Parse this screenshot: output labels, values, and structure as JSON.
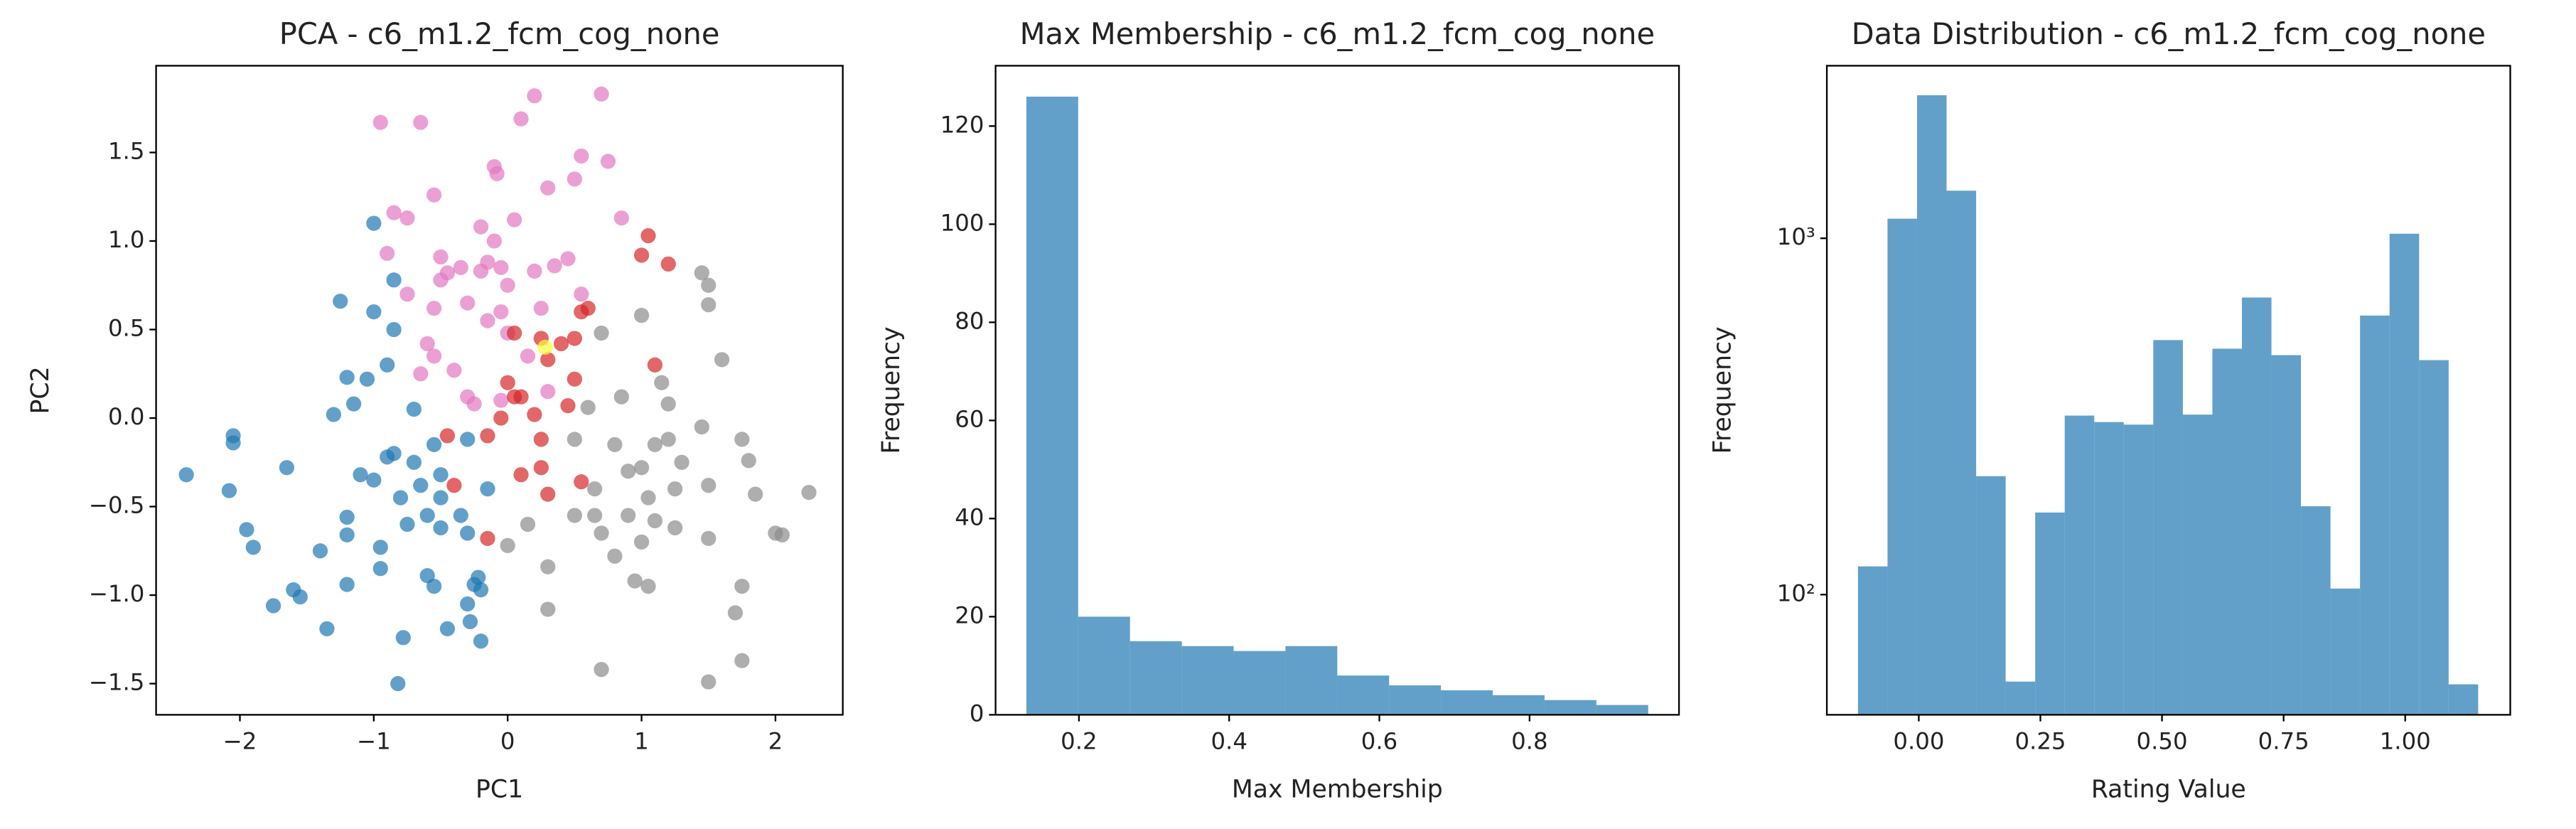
{
  "chart_data": [
    {
      "type": "scatter",
      "title": "PCA - c6_m1.2_fcm_cog_none",
      "xlabel": "PC1",
      "ylabel": "PC2",
      "xlim": [
        -2.626,
        2.503
      ],
      "ylim": [
        -1.676,
        1.99
      ],
      "xticks": [
        {
          "value": -2,
          "label": "−2"
        },
        {
          "value": -1,
          "label": "−1"
        },
        0,
        1,
        2
      ],
      "yticks": [
        {
          "value": -1.5,
          "label": "−1.5"
        },
        {
          "value": -1.0,
          "label": "−1.0"
        },
        {
          "value": -0.5,
          "label": "−0.5"
        },
        {
          "value": 0.0,
          "label": "0.0"
        },
        {
          "value": 0.5,
          "label": "0.5"
        },
        {
          "value": 1.0,
          "label": "1.0"
        },
        {
          "value": 1.5,
          "label": "1.5"
        }
      ],
      "series": [
        {
          "color": "#1f77b4",
          "x": [
            -2.4,
            -2.05,
            -2.05,
            -2.08,
            -1.95,
            -1.9,
            -1.75,
            -1.6,
            -1.55,
            -1.65,
            -1.4,
            -1.35,
            -1.3,
            -1.25,
            -1.2,
            -1.2,
            -1.2,
            -1.2,
            -1.15,
            -1.1,
            -1.05,
            -1.0,
            -1.0,
            -1.0,
            -0.95,
            -0.9,
            -0.95,
            -0.9,
            -0.85,
            -0.85,
            -0.85,
            -0.8,
            -0.82,
            -0.78,
            -0.75,
            -0.7,
            -0.7,
            -0.65,
            -0.6,
            -0.6,
            -0.55,
            -0.5,
            -0.5,
            -0.45,
            -0.5,
            -0.55,
            -0.35,
            -0.3,
            -0.3,
            -0.25,
            -0.22,
            -0.3,
            -0.28,
            -0.2,
            -0.15,
            -0.2
          ],
          "values": [
            -0.32,
            -0.1,
            -0.14,
            -0.41,
            -0.63,
            -0.73,
            -1.06,
            -0.97,
            -1.01,
            -0.28,
            -0.75,
            -1.19,
            0.02,
            0.66,
            0.23,
            -0.56,
            -0.66,
            -0.94,
            0.08,
            -0.32,
            0.22,
            1.1,
            0.6,
            -0.35,
            -0.85,
            0.3,
            -0.73,
            -0.22,
            0.78,
            0.5,
            -0.2,
            -0.45,
            -1.5,
            -1.24,
            -0.6,
            0.05,
            -0.25,
            -0.38,
            -0.55,
            -0.89,
            -0.15,
            -0.32,
            -0.45,
            -1.19,
            -0.62,
            -0.95,
            -0.55,
            -0.12,
            -0.65,
            -0.94,
            -0.9,
            -1.05,
            -1.15,
            -1.26,
            -0.4,
            -0.97
          ]
        },
        {
          "color": "#e377c2",
          "x": [
            -0.95,
            -0.65,
            -0.9,
            -0.85,
            -0.75,
            -0.55,
            -0.75,
            -0.65,
            -0.6,
            -0.55,
            -0.55,
            -0.5,
            -0.5,
            -0.45,
            -0.4,
            -0.35,
            -0.3,
            -0.3,
            -0.2,
            -0.2,
            -0.15,
            -0.15,
            -0.1,
            -0.08,
            -0.1,
            -0.05,
            -0.05,
            0.0,
            0.0,
            0.05,
            0.1,
            0.15,
            0.2,
            0.2,
            0.25,
            0.3,
            0.35,
            0.45,
            0.5,
            0.55,
            0.55,
            0.7,
            0.75,
            0.85,
            0.3,
            -0.25,
            -0.05
          ],
          "values": [
            1.67,
            1.67,
            0.93,
            1.16,
            1.13,
            1.26,
            0.7,
            0.25,
            0.42,
            0.35,
            0.62,
            0.78,
            0.91,
            0.82,
            0.27,
            0.85,
            0.65,
            0.12,
            0.83,
            1.08,
            0.88,
            0.55,
            1.42,
            1.38,
            1.0,
            0.6,
            0.85,
            0.75,
            0.48,
            1.12,
            1.69,
            0.35,
            1.82,
            0.83,
            0.62,
            1.3,
            0.86,
            0.9,
            1.35,
            1.48,
            0.7,
            1.83,
            1.45,
            1.13,
            0.15,
            0.08,
            0.1
          ]
        },
        {
          "color": "#d62728",
          "x": [
            1.05,
            1.2,
            1.0,
            0.55,
            0.5,
            0.4,
            0.3,
            0.25,
            0.05,
            0.0,
            0.05,
            0.1,
            0.2,
            0.45,
            0.5,
            -0.15,
            -0.05,
            -0.45,
            -0.4,
            0.25,
            0.1,
            0.25,
            0.3,
            0.55,
            -0.15,
            1.1,
            0.6
          ],
          "values": [
            1.03,
            0.87,
            0.92,
            0.6,
            0.45,
            0.42,
            0.33,
            0.45,
            0.48,
            0.2,
            0.12,
            0.12,
            0.02,
            0.07,
            0.22,
            -0.1,
            0.0,
            -0.1,
            -0.38,
            -0.12,
            -0.32,
            -0.28,
            -0.43,
            -0.36,
            -0.68,
            0.3,
            0.62
          ]
        },
        {
          "color": "#8c8c8c",
          "x": [
            1.45,
            1.5,
            1.5,
            1.0,
            0.7,
            1.6,
            1.15,
            0.85,
            1.2,
            0.6,
            0.5,
            0.8,
            1.1,
            1.2,
            1.45,
            1.75,
            1.8,
            0.9,
            1.0,
            1.3,
            0.65,
            1.05,
            1.25,
            1.5,
            1.85,
            0.5,
            0.65,
            0.9,
            1.1,
            1.25,
            0.15,
            0.7,
            1.0,
            1.5,
            0.8,
            0.95,
            1.05,
            0.3,
            0.3,
            2.0,
            2.05,
            2.25,
            1.75,
            1.7,
            1.75,
            1.5,
            0.7,
            0.0
          ],
          "values": [
            0.82,
            0.75,
            0.64,
            0.58,
            0.48,
            0.33,
            0.2,
            0.12,
            0.08,
            0.06,
            -0.12,
            -0.15,
            -0.15,
            -0.12,
            -0.05,
            -0.12,
            -0.24,
            -0.3,
            -0.28,
            -0.25,
            -0.4,
            -0.45,
            -0.4,
            -0.38,
            -0.43,
            -0.55,
            -0.55,
            -0.55,
            -0.58,
            -0.62,
            -0.6,
            -0.65,
            -0.7,
            -0.68,
            -0.78,
            -0.92,
            -0.95,
            -0.84,
            -1.08,
            -0.65,
            -0.66,
            -0.42,
            -0.95,
            -1.1,
            -1.37,
            -1.49,
            -1.42,
            -0.72
          ]
        },
        {
          "color": "#ffff33",
          "x": [
            0.28
          ],
          "values": [
            0.4
          ]
        }
      ]
    },
    {
      "type": "histogram",
      "title": "Max Membership - c6_m1.2_fcm_cog_none",
      "xlabel": "Max Membership",
      "ylabel": "Frequency",
      "color": "#1f77b4",
      "xlim": [
        0.089,
        0.999
      ],
      "ylim": [
        0,
        132.3
      ],
      "xticks": [
        0.2,
        0.4,
        0.6,
        0.8
      ],
      "yticks": [
        0,
        20,
        40,
        60,
        80,
        100,
        120
      ],
      "bins": [
        0.13,
        0.199,
        0.268,
        0.337,
        0.406,
        0.475,
        0.544,
        0.613,
        0.682,
        0.751,
        0.82,
        0.889,
        0.958
      ],
      "values": [
        126,
        20,
        15,
        14,
        13,
        14,
        8,
        6,
        5,
        4,
        3,
        2
      ]
    },
    {
      "type": "histogram",
      "title": "Data Distribution - c6_m1.2_fcm_cog_none",
      "xlabel": "Rating Value",
      "ylabel": "Frequency",
      "color": "#1f77b4",
      "yscale": "log",
      "xlim": [
        -0.189,
        1.216
      ],
      "ylim": [
        46,
        3050
      ],
      "xticks": [
        {
          "value": 0,
          "label": "0.00"
        },
        {
          "value": 0.25,
          "label": "0.25"
        },
        {
          "value": 0.5,
          "label": "0.50"
        },
        {
          "value": 0.75,
          "label": "0.75"
        },
        {
          "value": 1,
          "label": "1.00"
        }
      ],
      "yticks": [
        {
          "value": 100,
          "label": "10²"
        },
        {
          "value": 1000,
          "label": "10³"
        }
      ],
      "bins": [
        -0.125,
        -0.0643,
        -0.0036,
        0.0571,
        0.1179,
        0.1786,
        0.2393,
        0.3,
        0.3607,
        0.4214,
        0.4821,
        0.5429,
        0.6036,
        0.6643,
        0.725,
        0.7857,
        0.8464,
        0.9071,
        0.9679,
        1.0286,
        1.0893,
        1.15
      ],
      "values": [
        120,
        1135,
        2520,
        1360,
        215,
        57,
        170,
        318,
        305,
        300,
        518,
        320,
        490,
        682,
        470,
        177,
        104,
        607,
        1030,
        455,
        56
      ]
    }
  ]
}
